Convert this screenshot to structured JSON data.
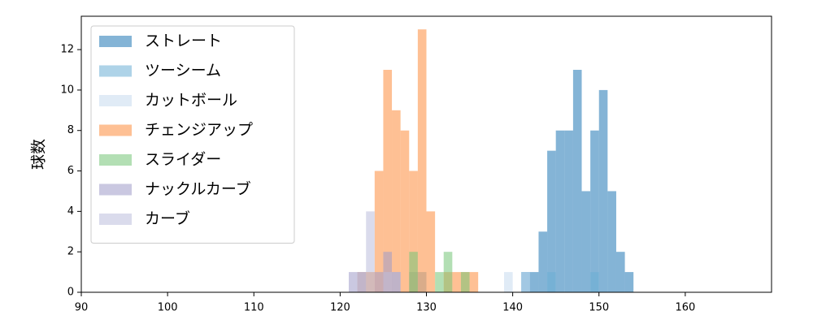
{
  "chart_data": {
    "type": "histogram",
    "y_label": "球数",
    "xlim": [
      90,
      170
    ],
    "ylim": [
      0,
      13.65
    ],
    "xticks": [
      90,
      100,
      110,
      120,
      130,
      140,
      150,
      160
    ],
    "yticks": [
      0,
      2,
      4,
      6,
      8,
      10,
      12
    ],
    "legend": "upper left",
    "series": [
      {
        "name": "ストレート",
        "color": "#1f77b4",
        "bins": [
          141,
          142,
          143,
          144,
          145,
          146,
          147,
          148,
          149,
          150,
          151,
          152,
          153,
          154
        ],
        "values": [
          1,
          1,
          3,
          7,
          8,
          8,
          11,
          5,
          8,
          10,
          5,
          2,
          1
        ]
      },
      {
        "name": "ツーシーム",
        "color": "#6baed6",
        "bins": [
          128,
          129,
          130,
          131,
          132,
          133,
          134,
          135,
          136,
          137,
          138,
          139,
          140,
          141,
          142,
          143,
          144,
          145,
          146,
          147,
          148,
          149,
          150
        ],
        "values": [
          1,
          1,
          0,
          0,
          0,
          0,
          0,
          0,
          0,
          0,
          0,
          0,
          0,
          1,
          0,
          0,
          1,
          0,
          0,
          0,
          0,
          1
        ]
      },
      {
        "name": "カットボール",
        "color": "#c6dbef",
        "bins": [
          123,
          124,
          125,
          126,
          127,
          128,
          129,
          130,
          131,
          132,
          133,
          134,
          135,
          136,
          137,
          138,
          139,
          140,
          141,
          142
        ],
        "values": [
          1,
          0,
          0,
          1,
          0,
          1,
          0,
          0,
          0,
          0,
          0,
          0,
          0,
          0,
          0,
          0,
          1,
          0,
          1
        ]
      },
      {
        "name": "チェンジアップ",
        "color": "#fd8d3c",
        "bins": [
          122,
          123,
          124,
          125,
          126,
          127,
          128,
          129,
          130,
          131,
          132,
          133,
          134,
          135,
          136
        ],
        "values": [
          1,
          1,
          6,
          11,
          9,
          8,
          6,
          13,
          4,
          0,
          1,
          1,
          1,
          1
        ]
      },
      {
        "name": "スライダー",
        "color": "#74c476",
        "bins": [
          128,
          129,
          130,
          131,
          132,
          133,
          134,
          135
        ],
        "values": [
          2,
          0,
          0,
          1,
          2,
          0,
          1
        ]
      },
      {
        "name": "ナックルカーブ",
        "color": "#9e9ac8",
        "bins": [
          121,
          122,
          123,
          124,
          125,
          126,
          127
        ],
        "values": [
          1,
          1,
          0,
          1,
          2,
          1
        ]
      },
      {
        "name": "カーブ",
        "color": "#bcbddc",
        "bins": [
          122,
          123,
          124,
          125,
          126,
          127
        ],
        "values": [
          1,
          4,
          0,
          1,
          1
        ]
      }
    ]
  }
}
